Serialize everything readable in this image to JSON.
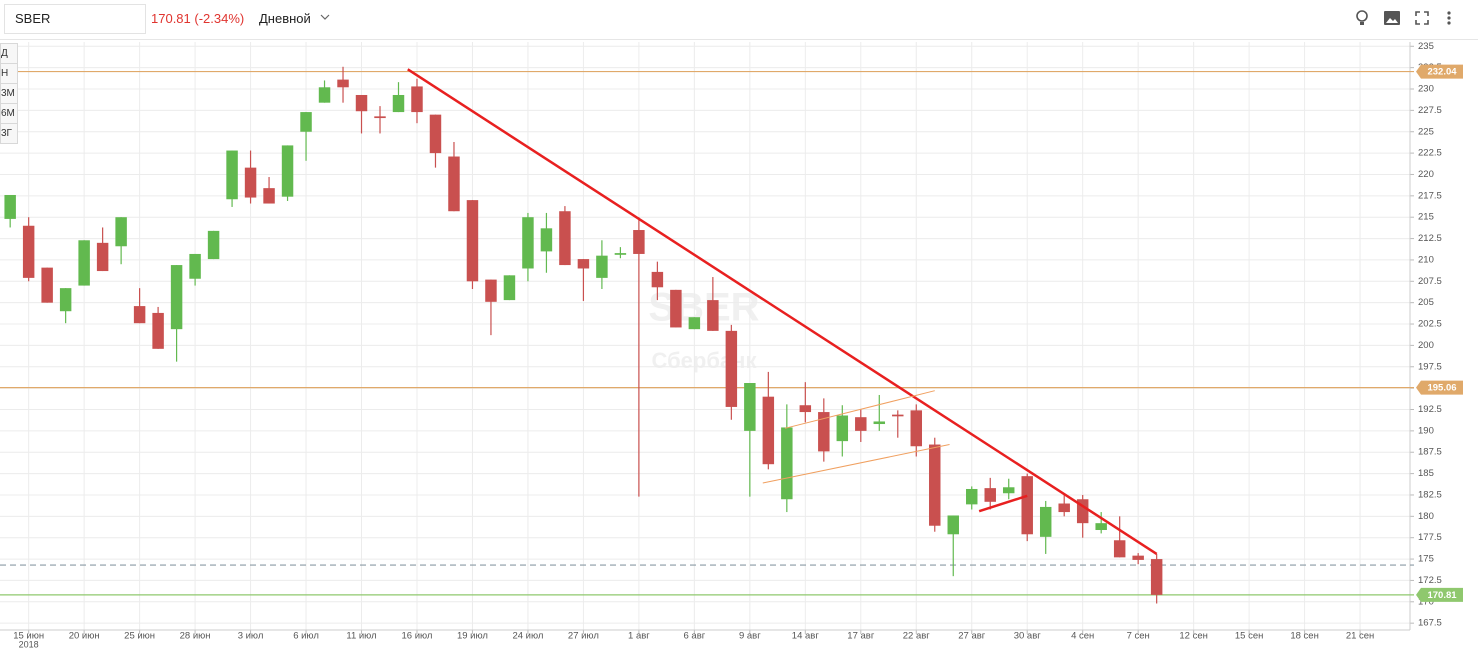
{
  "header": {
    "ticker": "SBER",
    "price": "170.81 (-2.34%)",
    "period": "Дневной"
  },
  "range_buttons": [
    "Д",
    "Н",
    "3М",
    "6М",
    "3Г"
  ],
  "chart_data": {
    "type": "candlestick",
    "watermark": [
      "SBER",
      "Сбербанк"
    ],
    "subtitle": "2018",
    "up_color": "#62b94f",
    "down_color": "#c9504f",
    "open": [
      214.8,
      214,
      209.1,
      204,
      207,
      212,
      211.6,
      204.6,
      203.8,
      201.9,
      207.8,
      210.1,
      217.1,
      220.8,
      218.4,
      217.4,
      225,
      228.4,
      231.1,
      229.3,
      226.8,
      227.3,
      230.3,
      227,
      222.1,
      217,
      207.7,
      205.3,
      209,
      211,
      215.7,
      210.1,
      207.9,
      210.6,
      213.5,
      208.6,
      206.5,
      201.9,
      205.3,
      201.7,
      190,
      194,
      182,
      193,
      192.2,
      188.8,
      191.6,
      190.8,
      191.9,
      192.4,
      188.4,
      177.9,
      181.4,
      183.3,
      182.7,
      184.7,
      177.6,
      181.5,
      182,
      178.4,
      177.2,
      175.4,
      175
    ],
    "high": [
      217.6,
      215,
      209.1,
      206.7,
      212.3,
      213.8,
      215,
      206.7,
      204.5,
      209.4,
      210.7,
      213.4,
      222.8,
      222.8,
      219.7,
      223.4,
      227.3,
      231,
      232.6,
      229.3,
      228,
      230.8,
      231.2,
      227,
      223.8,
      217,
      207.7,
      208.2,
      215.5,
      215.5,
      216.3,
      210.1,
      212.3,
      211.5,
      215,
      209.8,
      206.5,
      203.3,
      208,
      202.4,
      195.6,
      196.9,
      193.1,
      195.7,
      193.8,
      193,
      192.5,
      194.2,
      192.4,
      193.1,
      189.2,
      180.1,
      183.5,
      184.5,
      184.4,
      185,
      181.8,
      182.7,
      182.5,
      180.5,
      180,
      175.7,
      175.6
    ],
    "low": [
      213.8,
      207.5,
      205,
      202.6,
      207,
      208.7,
      209.5,
      202.6,
      199.6,
      198.1,
      207,
      210.1,
      216.2,
      216.6,
      216.6,
      216.9,
      221.6,
      228.4,
      228.4,
      224.8,
      224.8,
      227.3,
      226,
      220.8,
      215.7,
      206.6,
      201.2,
      205.3,
      207.5,
      208.5,
      209.4,
      205.2,
      206.6,
      210.2,
      182.3,
      205.3,
      202.1,
      201.9,
      201.7,
      191.3,
      182.3,
      185.5,
      180.5,
      191,
      186.4,
      187,
      188.7,
      190,
      189.2,
      187,
      178.2,
      173,
      180.8,
      180.8,
      182,
      177.1,
      175.6,
      180,
      177.5,
      178,
      175.2,
      174.4,
      169.8
    ],
    "close": [
      217.6,
      207.9,
      205,
      206.7,
      212.3,
      208.7,
      215,
      202.6,
      199.6,
      209.4,
      210.7,
      213.4,
      222.8,
      217.3,
      216.6,
      223.4,
      227.3,
      230.2,
      230.2,
      227.4,
      226.6,
      229.3,
      227.3,
      222.5,
      215.7,
      207.5,
      205.1,
      208.2,
      215,
      213.7,
      209.4,
      209,
      210.5,
      210.8,
      210.7,
      206.8,
      202.1,
      203.3,
      201.7,
      192.8,
      195.6,
      186.1,
      190.4,
      192.2,
      187.6,
      191.8,
      190,
      191.1,
      191.7,
      188.2,
      178.9,
      180.1,
      183.2,
      181.7,
      183.4,
      177.9,
      181.1,
      180.5,
      179.2,
      179.2,
      175.2,
      174.9,
      170.81
    ],
    "xlim": [
      -0.55,
      75.7
    ],
    "xticks": [
      {
        "value": 1,
        "label": "15 июн"
      },
      {
        "value": 4,
        "label": "20 июн"
      },
      {
        "value": 7,
        "label": "25 июн"
      },
      {
        "value": 10,
        "label": "28 июн"
      },
      {
        "value": 13,
        "label": "3 июл"
      },
      {
        "value": 16,
        "label": "6 июл"
      },
      {
        "value": 19,
        "label": "11 июл"
      },
      {
        "value": 22,
        "label": "16 июл"
      },
      {
        "value": 25,
        "label": "19 июл"
      },
      {
        "value": 28,
        "label": "24 июл"
      },
      {
        "value": 31,
        "label": "27 июл"
      },
      {
        "value": 34,
        "label": "1 авг"
      },
      {
        "value": 37,
        "label": "6 авг"
      },
      {
        "value": 40,
        "label": "9 авг"
      },
      {
        "value": 43,
        "label": "14 авг"
      },
      {
        "value": 46,
        "label": "17 авг"
      },
      {
        "value": 49,
        "label": "22 авг"
      },
      {
        "value": 52,
        "label": "27 авг"
      },
      {
        "value": 55,
        "label": "30 авг"
      },
      {
        "value": 58,
        "label": "4 сен"
      },
      {
        "value": 61,
        "label": "7 сен"
      },
      {
        "value": 64,
        "label": "12 сен"
      },
      {
        "value": 67,
        "label": "15 сен"
      },
      {
        "value": 70,
        "label": "18 сен"
      },
      {
        "value": 73,
        "label": "21 сен"
      }
    ],
    "ylim": [
      166.7,
      235.5
    ],
    "yticks": [
      167.5,
      170,
      172.5,
      175,
      177.5,
      180,
      182.5,
      185,
      187.5,
      190,
      192.5,
      195,
      197.5,
      200,
      202.5,
      205,
      207.5,
      210,
      212.5,
      215,
      217.5,
      220,
      222.5,
      225,
      227.5,
      230,
      232.5,
      235
    ],
    "grid": true,
    "levels": [
      {
        "value": 232.04,
        "color": "#e0a96a",
        "style": "solid"
      },
      {
        "value": 195.06,
        "color": "#e0a96a",
        "style": "solid"
      },
      {
        "value": 174.3,
        "color": "#8a9aa4",
        "style": "dashed"
      },
      {
        "value": 170.81,
        "color": "#8fc86e",
        "style": "solid"
      }
    ],
    "trendlines": [
      {
        "x": [
          21.5,
          62
        ],
        "y": [
          232.3,
          175.6
        ],
        "color": "#e82020",
        "width": 2.5
      },
      {
        "x": [
          41.9,
          50
        ],
        "y": [
          190.3,
          194.7
        ],
        "color": "#f0a060",
        "width": 1
      },
      {
        "x": [
          40.7,
          50.8
        ],
        "y": [
          183.9,
          188.4
        ],
        "color": "#f0a060",
        "width": 1
      },
      {
        "x": [
          52.4,
          55
        ],
        "y": [
          180.6,
          182.4
        ],
        "color": "#e82020",
        "width": 2.5
      }
    ]
  }
}
